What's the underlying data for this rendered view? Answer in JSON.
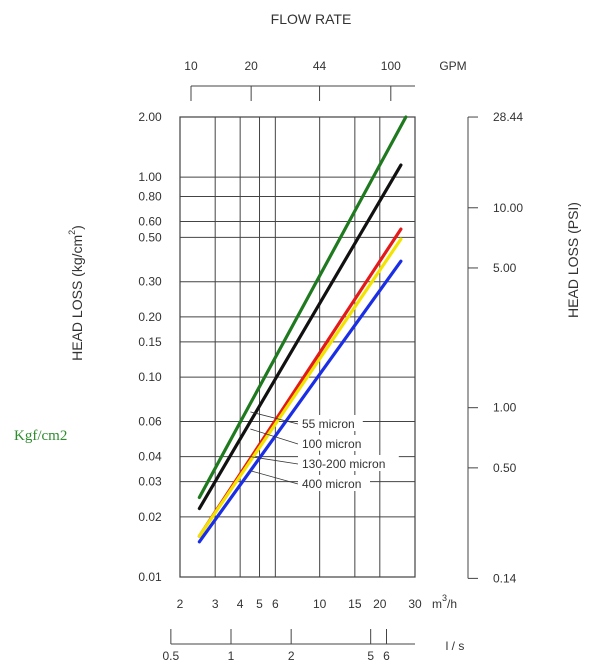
{
  "side_note": "Kgf/cm2",
  "chart_data": {
    "type": "line",
    "title": "FLOW RATE",
    "xlabel": "m3/h",
    "xlabel_main": "m",
    "xlabel_sup": "3",
    "xlabel_tail": "/h",
    "x_scale": "log",
    "y_scale": "log",
    "xlim": [
      2,
      30
    ],
    "ylim": [
      0.01,
      2.0
    ],
    "grid": true,
    "x_ticks": [
      2,
      3,
      4,
      5,
      6,
      10,
      15,
      20,
      30
    ],
    "x_tick_labels": [
      "2",
      "3",
      "4",
      "5",
      "6",
      "10",
      "15",
      "20",
      "30"
    ],
    "y_ticks": [
      0.01,
      0.02,
      0.03,
      0.04,
      0.06,
      0.1,
      0.15,
      0.2,
      0.3,
      0.5,
      0.6,
      0.8,
      1.0,
      2.0
    ],
    "y_tick_labels": [
      "0.01",
      "0.02",
      "0.03",
      "0.04",
      "0.06",
      "0.10",
      "0.15",
      "0.20",
      "0.30",
      "0.50",
      "0.60",
      "0.80",
      "1.00",
      "2.00"
    ],
    "ylabel_left_main": "HEAD LOSS (kg/cm",
    "ylabel_left_sup": "2",
    "ylabel_left_tail": ")",
    "top_axis": {
      "unit": "GPM",
      "ticks": [
        10,
        20,
        44,
        100
      ],
      "tick_labels": [
        "10",
        "20",
        "44",
        "100"
      ],
      "m3h_per_unit": 0.227
    },
    "bottom_axis": {
      "unit": "l / s",
      "ticks": [
        0.5,
        1,
        2,
        5,
        6
      ],
      "tick_labels": [
        "0.5",
        "1",
        "2",
        "5",
        "6"
      ],
      "m3h_per_unit": 3.6
    },
    "right_axis": {
      "label": "HEAD LOSS (PSI)",
      "ticks": [
        28.44,
        10.0,
        5.0,
        1.0,
        0.5,
        0.14
      ],
      "tick_labels": [
        "28.44",
        "10.00",
        "5.00",
        "1.00",
        "0.50",
        "0.14"
      ],
      "kg_per_unit": 0.0703
    },
    "series": [
      {
        "name": "55 micron",
        "color": "#1f7a1f",
        "x": [
          2.5,
          27.0
        ],
        "y": [
          0.025,
          2.0
        ]
      },
      {
        "name": "100 micron",
        "color": "#111111",
        "x": [
          2.5,
          25.5
        ],
        "y": [
          0.022,
          1.15
        ]
      },
      {
        "name": "130-200 micron",
        "color": "#e41a1a",
        "x": [
          2.5,
          25.5
        ],
        "y": [
          0.016,
          0.55
        ]
      },
      {
        "name": "",
        "color": "#f2e400",
        "x": [
          2.5,
          25.5
        ],
        "y": [
          0.016,
          0.49
        ]
      },
      {
        "name": "400 micron",
        "color": "#1a2ee6",
        "x": [
          2.5,
          25.5
        ],
        "y": [
          0.015,
          0.38
        ]
      }
    ],
    "legend_labels": [
      "55 micron",
      "100 micron",
      "130-200 micron",
      "400 micron"
    ]
  }
}
